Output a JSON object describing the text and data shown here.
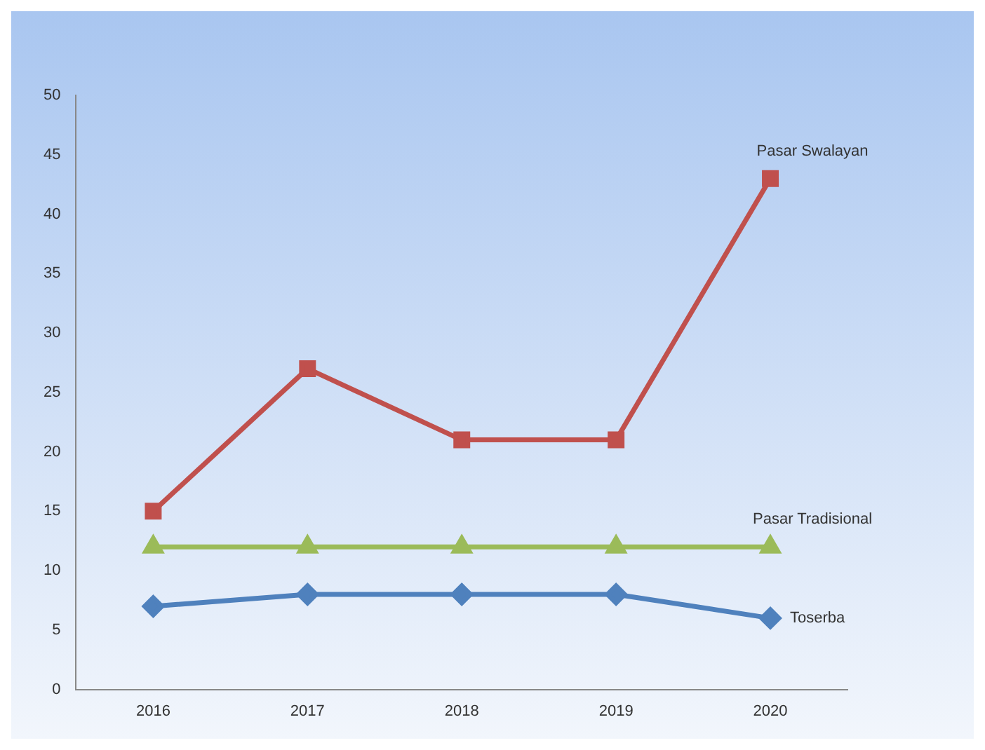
{
  "chart_data": {
    "type": "line",
    "categories": [
      "2016",
      "2017",
      "2018",
      "2019",
      "2020"
    ],
    "series": [
      {
        "name": "Pasar Swalayan",
        "color": "#c0504d",
        "marker": "square",
        "values": [
          15,
          27,
          21,
          21,
          43
        ]
      },
      {
        "name": "Pasar Tradisional",
        "color": "#9bbb59",
        "marker": "triangle",
        "values": [
          12,
          12,
          12,
          12,
          12
        ]
      },
      {
        "name": "Toserba",
        "color": "#4f81bd",
        "marker": "diamond",
        "values": [
          7,
          8,
          8,
          8,
          6
        ]
      }
    ],
    "ylim": [
      0,
      50
    ],
    "yticks": [
      0,
      5,
      10,
      15,
      20,
      25,
      30,
      35,
      40,
      45,
      50
    ],
    "grid": false,
    "legend": false
  }
}
